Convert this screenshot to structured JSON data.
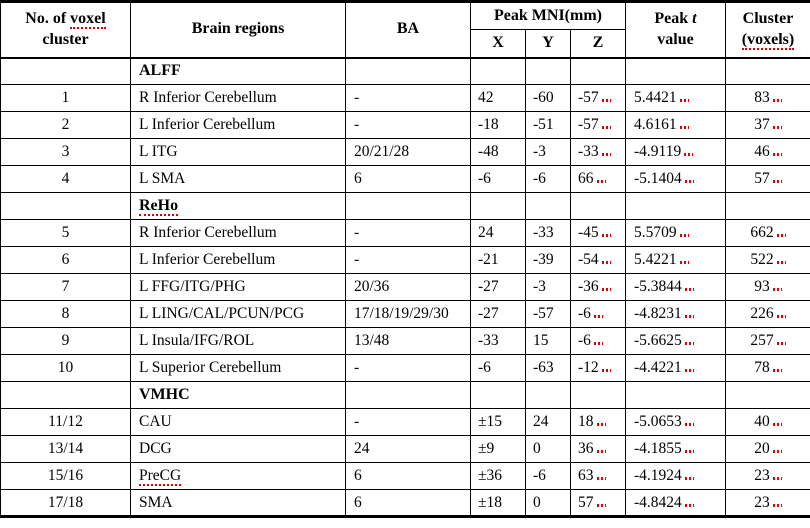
{
  "colors": {
    "background": "#ffffff",
    "border": "#000000",
    "text": "#000000",
    "spellcheck_squiggle": "#dd0000"
  },
  "table": {
    "header": {
      "no_line1_prefix": "No. of ",
      "no_line1_word": "voxel",
      "no_line2": "cluster",
      "regions": "Brain regions",
      "ba": "BA",
      "mni": "Peak MNI(mm)",
      "x": "X",
      "y": "Y",
      "z": "Z",
      "t_line1_prefix": "Peak ",
      "t_line1_italic": "t",
      "t_line2": "value",
      "cluster_line1": "Cluster",
      "cluster_line2": "(voxels)"
    },
    "red_mark_columns": [
      "z",
      "t",
      "cluster"
    ],
    "rows": [
      {
        "type": "section",
        "label": "ALFF",
        "sq": false
      },
      {
        "type": "data",
        "no": "1",
        "region": "R Inferior Cerebellum",
        "ba": "-",
        "x": "42",
        "y": "-60",
        "z": "-57",
        "t": "5.4421",
        "cluster": "83"
      },
      {
        "type": "data",
        "no": "2",
        "region": "L Inferior Cerebellum",
        "ba": "-",
        "x": "-18",
        "y": "-51",
        "z": "-57",
        "t": "4.6161",
        "cluster": "37"
      },
      {
        "type": "data",
        "no": "3",
        "region": "L ITG",
        "ba": "20/21/28",
        "x": "-48",
        "y": "-3",
        "z": "-33",
        "t": "-4.9119",
        "cluster": "46"
      },
      {
        "type": "data",
        "no": "4",
        "region": "L SMA",
        "ba": "6",
        "x": "-6",
        "y": "-6",
        "z": "66",
        "t": "-5.1404",
        "cluster": "57"
      },
      {
        "type": "section",
        "label": "ReHo",
        "sq": true
      },
      {
        "type": "data",
        "no": "5",
        "region": "R Inferior Cerebellum",
        "ba": "-",
        "x": "24",
        "y": "-33",
        "z": "-45",
        "t": "5.5709",
        "cluster": "662"
      },
      {
        "type": "data",
        "no": "6",
        "region": "L Inferior Cerebellum",
        "ba": "-",
        "x": "-21",
        "y": "-39",
        "z": "-54",
        "t": "5.4221",
        "cluster": "522"
      },
      {
        "type": "data",
        "no": "7",
        "region": "L FFG/ITG/PHG",
        "ba": "20/36",
        "x": "-27",
        "y": "-3",
        "z": "-36",
        "t": "-5.3844",
        "cluster": "93"
      },
      {
        "type": "data",
        "no": "8",
        "region": "L LING/CAL/PCUN/PCG",
        "ba": "17/18/19/29/30",
        "x": "-27",
        "y": "-57",
        "z": "-6",
        "t": "-4.8231",
        "cluster": "226"
      },
      {
        "type": "data",
        "no": "9",
        "region": "L Insula/IFG/ROL",
        "ba": "13/48",
        "x": "-33",
        "y": "15",
        "z": "-6",
        "t": "-5.6625",
        "cluster": "257"
      },
      {
        "type": "data",
        "no": "10",
        "region": "L Superior Cerebellum",
        "ba": "-",
        "x": "-6",
        "y": "-63",
        "z": "-12",
        "t": "-4.4221",
        "cluster": "78"
      },
      {
        "type": "section",
        "label": "VMHC",
        "sq": false
      },
      {
        "type": "data",
        "no": "11/12",
        "region": "CAU",
        "ba": "-",
        "x": "±15",
        "y": "24",
        "z": "18",
        "t": "-5.0653",
        "cluster": "40"
      },
      {
        "type": "data",
        "no": "13/14",
        "region": "DCG",
        "ba": "24",
        "x": "±9",
        "y": "0",
        "z": "36",
        "t": "-4.1855",
        "cluster": "20"
      },
      {
        "type": "data",
        "no": "15/16",
        "region": "PreCG",
        "ba": "6",
        "x": "±36",
        "y": "-6",
        "z": "63",
        "t": "-4.1924",
        "cluster": "23",
        "sq_region": true
      },
      {
        "type": "data",
        "no": "17/18",
        "region": "SMA",
        "ba": "6",
        "x": "±18",
        "y": "0",
        "z": "57",
        "t": "-4.8424",
        "cluster": "23"
      }
    ]
  }
}
